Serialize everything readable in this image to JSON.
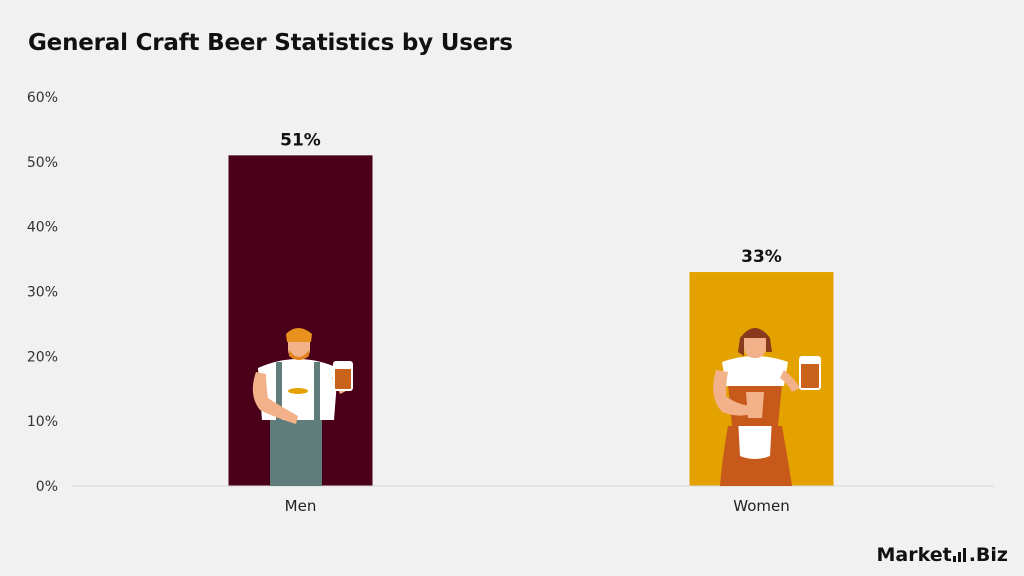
{
  "chart_data": {
    "type": "bar",
    "title": "General Craft Beer Statistics by Users",
    "categories": [
      "Men",
      "Women"
    ],
    "values": [
      51,
      33
    ],
    "data_labels": [
      "51%",
      "33%"
    ],
    "ylim": [
      0,
      60
    ],
    "yticks": [
      "0%",
      "10%",
      "20%",
      "30%",
      "40%",
      "50%",
      "60%"
    ],
    "ytick_values": [
      0,
      10,
      20,
      30,
      40,
      50,
      60
    ],
    "bar_colors": [
      "#4b0019",
      "#e4a200"
    ],
    "grid": false
  },
  "brand": {
    "name": "Market",
    "suffix": ".Biz"
  },
  "illustrations": [
    "man-with-beer-illustration",
    "woman-with-beer-illustration"
  ]
}
